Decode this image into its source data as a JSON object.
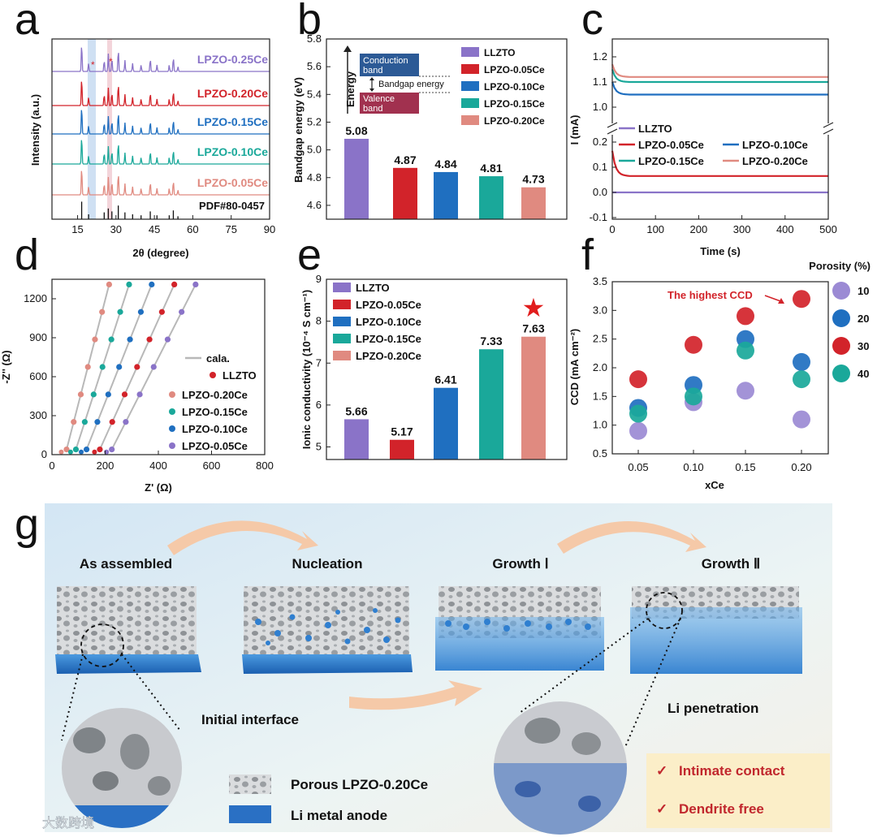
{
  "panel_labels": {
    "a": "a",
    "b": "b",
    "c": "c",
    "d": "d",
    "e": "e",
    "f": "f",
    "g": "g"
  },
  "chart_data": [
    {
      "id": "a",
      "type": "line",
      "xlabel": "2θ (degree)",
      "ylabel": "Intensity (a.u.)",
      "xlim": [
        5,
        90
      ],
      "xticks": [
        "15",
        "30",
        "45",
        "60",
        "75",
        "90"
      ],
      "series": [
        {
          "name": "LPZO-0.25Ce",
          "color": "#8a73c8"
        },
        {
          "name": "LPZO-0.20Ce",
          "color": "#d2232a"
        },
        {
          "name": "LPZO-0.15Ce",
          "color": "#1f6fc0"
        },
        {
          "name": "LPZO-0.10Ce",
          "color": "#1aa89a"
        },
        {
          "name": "LPZO-0.05Ce",
          "color": "#e08a80"
        }
      ],
      "reference": "PDF#80-0457",
      "markers": [
        "*",
        "*"
      ]
    },
    {
      "id": "b",
      "type": "bar",
      "ylabel": "Bandgap energy (eV)",
      "ylim": [
        4.5,
        5.8
      ],
      "yticks": [
        "4.6",
        "4.8",
        "5.0",
        "5.2",
        "5.4",
        "5.6",
        "5.8"
      ],
      "categories": [
        "LLZTO",
        "LPZO-0.05Ce",
        "LPZO-0.10Ce",
        "LPZO-0.15Ce",
        "LPZO-0.20Ce"
      ],
      "values": [
        5.08,
        4.87,
        4.84,
        4.81,
        4.73
      ],
      "value_labels": [
        "5.08",
        "4.87",
        "4.84",
        "4.81",
        "4.73"
      ],
      "colors": [
        "#8a73c8",
        "#d2232a",
        "#1f6fc0",
        "#1aa89a",
        "#e08a80"
      ],
      "inset": {
        "axis": "Energy",
        "conduction": [
          "Conduction",
          "band"
        ],
        "valence": [
          "Valence",
          "band"
        ],
        "gap": "Bandgap energy"
      }
    },
    {
      "id": "c",
      "type": "line",
      "xlabel": "Time (s)",
      "ylabel": "I (mA)",
      "xlim": [
        0,
        500
      ],
      "xticks": [
        "0",
        "100",
        "200",
        "300",
        "400",
        "500"
      ],
      "yticks_upper": [
        "1.0",
        "1.1",
        "1.2"
      ],
      "yticks_lower": [
        "-0.1",
        "0.0",
        "0.1",
        "0.2"
      ],
      "series": [
        {
          "name": "LLZTO",
          "color": "#8a73c8",
          "level": 0.0
        },
        {
          "name": "LPZO-0.05Ce",
          "color": "#d2232a",
          "level": 0.065
        },
        {
          "name": "LPZO-0.10Ce",
          "color": "#1f6fc0",
          "level": 1.05
        },
        {
          "name": "LPZO-0.15Ce",
          "color": "#1aa89a",
          "level": 1.1
        },
        {
          "name": "LPZO-0.20Ce",
          "color": "#e08a80",
          "level": 1.12
        }
      ]
    },
    {
      "id": "d",
      "type": "scatter",
      "xlabel": "Z' (Ω)",
      "ylabel": "-Z'' (Ω)",
      "xlim": [
        0,
        800
      ],
      "ylim": [
        0,
        1350
      ],
      "xticks": [
        "0",
        "200",
        "400",
        "600",
        "800"
      ],
      "yticks": [
        "0",
        "300",
        "600",
        "900",
        "1200"
      ],
      "fit_label": "cala.",
      "series": [
        {
          "name": "LLZTO",
          "color": "#d2232a",
          "x0": 160,
          "x_end": 460
        },
        {
          "name": "LPZO-0.20Ce",
          "color": "#e08a80",
          "x0": 35,
          "x_end": 215
        },
        {
          "name": "LPZO-0.15Ce",
          "color": "#1aa89a",
          "x0": 70,
          "x_end": 290
        },
        {
          "name": "LPZO-0.10Ce",
          "color": "#1f6fc0",
          "x0": 110,
          "x_end": 375
        },
        {
          "name": "LPZO-0.05Ce",
          "color": "#8a73c8",
          "x0": 205,
          "x_end": 540
        }
      ]
    },
    {
      "id": "e",
      "type": "bar",
      "ylabel": "Ionic conductivity (10⁻⁴ S cm⁻¹)",
      "ylim": [
        4.7,
        9
      ],
      "yticks": [
        "5",
        "6",
        "7",
        "8",
        "9"
      ],
      "categories": [
        "LLZTO",
        "LPZO-0.05Ce",
        "LPZO-0.10Ce",
        "LPZO-0.15Ce",
        "LPZO-0.20Ce"
      ],
      "values": [
        5.66,
        5.17,
        6.41,
        7.33,
        7.63
      ],
      "value_labels": [
        "5.66",
        "5.17",
        "6.41",
        "7.33",
        "7.63"
      ],
      "colors": [
        "#8a73c8",
        "#d2232a",
        "#1f6fc0",
        "#1aa89a",
        "#e08a80"
      ],
      "highlight": "★"
    },
    {
      "id": "f",
      "type": "scatter",
      "xlabel": "xCe",
      "ylabel": "CCD (mA cm⁻²)",
      "ylim": [
        0.5,
        3.5
      ],
      "categories": [
        "0.05",
        "0.10",
        "0.15",
        "0.20"
      ],
      "yticks": [
        "0.5",
        "1.0",
        "1.5",
        "2.0",
        "2.5",
        "3.0",
        "3.5"
      ],
      "legend_title": "Porosity (%)",
      "annotation": "The highest CCD",
      "series": [
        {
          "name": "10",
          "color": "#9b8ad4",
          "values": [
            0.9,
            1.4,
            1.6,
            1.1
          ]
        },
        {
          "name": "20",
          "color": "#1f6fc0",
          "values": [
            1.3,
            1.7,
            2.5,
            2.1
          ]
        },
        {
          "name": "30",
          "color": "#d2232a",
          "values": [
            1.8,
            2.4,
            2.9,
            3.2
          ]
        },
        {
          "name": "40",
          "color": "#1aa89a",
          "values": [
            1.2,
            1.5,
            2.3,
            1.8
          ]
        }
      ]
    }
  ],
  "schematic": {
    "stages": [
      "As assembled",
      "Nucleation",
      "Growth Ⅰ",
      "Growth Ⅱ"
    ],
    "initial_interface": "Initial interface",
    "li_penetration": "Li penetration",
    "legend": {
      "porous": "Porous LPZO-0.20Ce",
      "anode": "Li metal anode"
    },
    "benefits": [
      "Intimate contact",
      "Dendrite free"
    ],
    "check": "✓",
    "watermark": "大数跨境"
  }
}
